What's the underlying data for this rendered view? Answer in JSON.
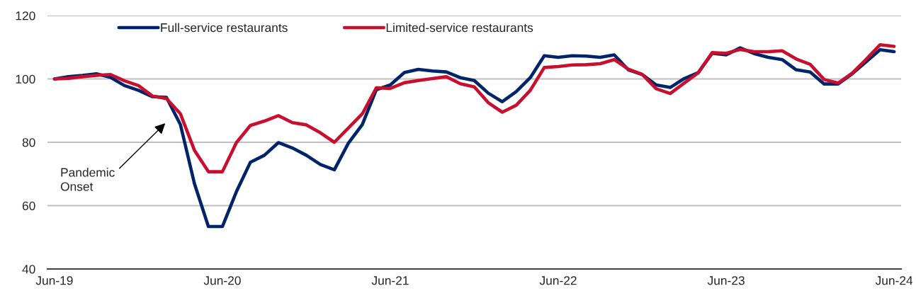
{
  "chart_data": {
    "type": "line",
    "categories": [
      "Jun-19",
      null,
      null,
      null,
      null,
      null,
      null,
      null,
      null,
      null,
      null,
      null,
      "Jun-20",
      null,
      null,
      null,
      null,
      null,
      null,
      null,
      null,
      null,
      null,
      null,
      "Jun-21",
      null,
      null,
      null,
      null,
      null,
      null,
      null,
      null,
      null,
      null,
      null,
      "Jun-22",
      null,
      null,
      null,
      null,
      null,
      null,
      null,
      null,
      null,
      null,
      null,
      "Jun-23",
      null,
      null,
      null,
      null,
      null,
      null,
      null,
      null,
      null,
      null,
      null,
      "Jun-24"
    ],
    "series": [
      {
        "name": "Full-service restaurants",
        "color": "#002469",
        "values": [
          100.0,
          100.7,
          101.1,
          101.6,
          100.5,
          97.9,
          96.4,
          94.4,
          94.2,
          85.6,
          67.0,
          53.4,
          53.4,
          64.4,
          73.7,
          75.9,
          79.9,
          78.2,
          75.9,
          73.0,
          71.3,
          79.7,
          85.6,
          96.6,
          98.1,
          102.0,
          103.0,
          102.5,
          102.2,
          100.4,
          99.5,
          95.5,
          92.8,
          96.0,
          100.4,
          107.3,
          106.8,
          107.3,
          107.2,
          106.8,
          107.6,
          102.9,
          101.4,
          98.1,
          97.3,
          100.1,
          102.0,
          108.1,
          107.6,
          109.8,
          108.0,
          106.8,
          106.1,
          102.9,
          102.2,
          98.4,
          98.4,
          101.6,
          105.4,
          109.2,
          108.6
        ]
      },
      {
        "name": "Limited-service restaurants",
        "color": "#c8102e",
        "values": [
          100.0,
          100.2,
          100.7,
          101.1,
          101.4,
          99.4,
          97.9,
          94.6,
          93.8,
          89.0,
          77.5,
          70.7,
          70.7,
          79.9,
          85.3,
          86.7,
          88.4,
          86.2,
          85.5,
          83.0,
          80.0,
          84.5,
          89.0,
          97.2,
          97.0,
          98.8,
          99.5,
          100.1,
          100.7,
          98.5,
          97.5,
          92.5,
          89.5,
          91.7,
          96.4,
          103.6,
          103.9,
          104.4,
          104.5,
          104.8,
          106.1,
          103.1,
          101.4,
          96.9,
          95.4,
          98.7,
          101.9,
          108.3,
          108.1,
          109.3,
          108.6,
          108.6,
          108.9,
          106.3,
          104.6,
          99.8,
          98.7,
          101.8,
          106.2,
          110.8,
          110.3
        ]
      }
    ],
    "ylim": [
      40,
      120
    ],
    "yticks": [
      40,
      60,
      80,
      100,
      120
    ],
    "grid": "y",
    "legend": "top left",
    "line_style": "solid",
    "annotations": [
      "Pandemic\nOnset"
    ]
  }
}
